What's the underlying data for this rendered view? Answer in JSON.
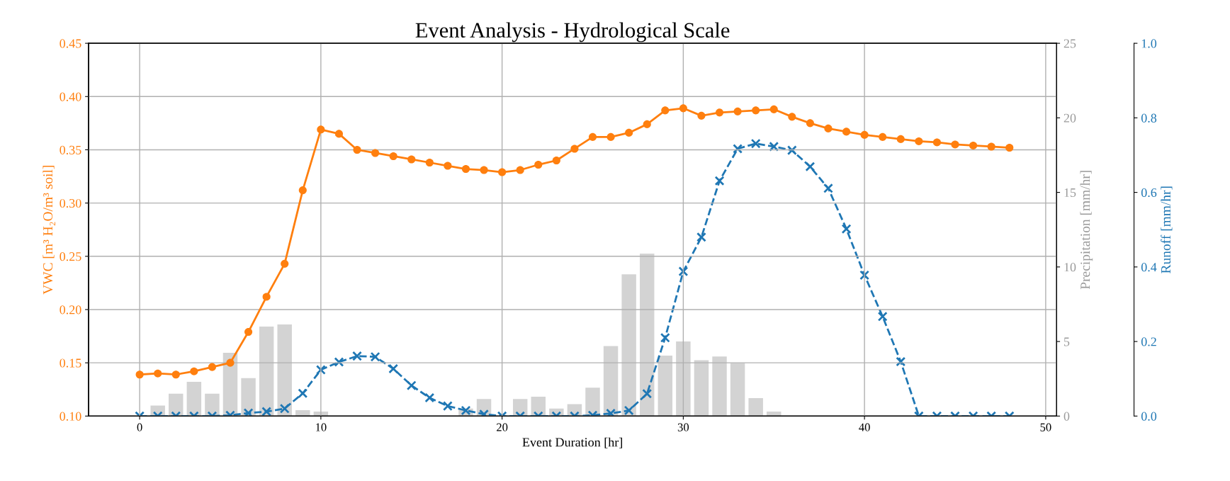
{
  "chart_data": {
    "type": "line",
    "title": "Event Analysis - Hydrological Scale",
    "xlabel": "Event Duration [hr]",
    "ylabel": "VWC [m³ H₂O/m³ soil]",
    "y2label": "Precipitation [mm/hr]",
    "y3label": "Runoff [mm/hr]",
    "xlim": [
      -2.82,
      50.6
    ],
    "xticks": [
      0,
      10,
      20,
      30,
      40,
      50
    ],
    "ylim": [
      0.1,
      0.45
    ],
    "yticks": [
      {
        "value": 0.1,
        "label": "0.10"
      },
      {
        "value": 0.15,
        "label": "0.15"
      },
      {
        "value": 0.2,
        "label": "0.20"
      },
      {
        "value": 0.25,
        "label": "0.25"
      },
      {
        "value": 0.3,
        "label": "0.30"
      },
      {
        "value": 0.35,
        "label": "0.35"
      },
      {
        "value": 0.4,
        "label": "0.40"
      },
      {
        "value": 0.45,
        "label": "0.45"
      }
    ],
    "y2lim": [
      0,
      25
    ],
    "y2ticks": [
      0,
      5,
      10,
      15,
      20,
      25
    ],
    "y3lim": [
      0,
      1
    ],
    "y3ticks": [
      {
        "value": 0,
        "label": "0.0"
      },
      {
        "value": 0.2,
        "label": "0.2"
      },
      {
        "value": 0.4,
        "label": "0.4"
      },
      {
        "value": 0.6,
        "label": "0.6"
      },
      {
        "value": 0.8,
        "label": "0.8"
      },
      {
        "value": 1,
        "label": "1.0"
      }
    ],
    "grid": true,
    "legend": false,
    "series": [
      {
        "type": "bar",
        "axis": "y2",
        "color": "#d3d3d3",
        "x": [
          1,
          2,
          3,
          4,
          5,
          6,
          7,
          8,
          9,
          10,
          11,
          12,
          13,
          14,
          15,
          16,
          17,
          18,
          19,
          20,
          21,
          22,
          23,
          24,
          25,
          26,
          27,
          28,
          29,
          30,
          31,
          32,
          33,
          34,
          35
        ],
        "values": [
          0.7,
          1.5,
          2.3,
          1.5,
          4.25,
          2.55,
          6.0,
          6.15,
          0.4,
          0.3,
          0,
          0,
          0,
          0,
          0,
          0,
          0,
          0.5,
          1.15,
          0,
          1.15,
          1.3,
          0.5,
          0.8,
          1.9,
          4.7,
          9.5,
          10.9,
          4.05,
          5.0,
          3.75,
          4.0,
          3.55,
          1.2,
          0.3
        ]
      },
      {
        "axis": "y3",
        "color": "#1f77b4",
        "marker": "cross",
        "line_style": "dashed",
        "x": [
          0,
          1,
          2,
          3,
          4,
          5,
          6,
          7,
          8,
          9,
          10,
          11,
          12,
          13,
          14,
          15,
          16,
          17,
          18,
          19,
          20,
          21,
          22,
          23,
          24,
          25,
          26,
          27,
          28,
          29,
          30,
          31,
          32,
          33,
          34,
          35,
          36,
          37,
          38,
          39,
          40,
          41,
          42,
          43,
          44,
          45,
          46,
          47,
          48
        ],
        "values": [
          0,
          0,
          0,
          0,
          0,
          0.002,
          0.008,
          0.012,
          0.02,
          0.061,
          0.124,
          0.145,
          0.161,
          0.159,
          0.127,
          0.082,
          0.049,
          0.027,
          0.015,
          0.005,
          0,
          0,
          0,
          0,
          0,
          0.002,
          0.007,
          0.015,
          0.06,
          0.21,
          0.388,
          0.48,
          0.631,
          0.717,
          0.731,
          0.723,
          0.713,
          0.669,
          0.611,
          0.502,
          0.378,
          0.267,
          0.146,
          0,
          0,
          0,
          0,
          0,
          0
        ]
      },
      {
        "axis": "y",
        "color": "#ff7f0e",
        "marker": "circle",
        "line_style": "solid",
        "x": [
          0,
          1,
          2,
          3,
          4,
          5,
          6,
          7,
          8,
          9,
          10,
          11,
          12,
          13,
          14,
          15,
          16,
          17,
          18,
          19,
          20,
          21,
          22,
          23,
          24,
          25,
          26,
          27,
          28,
          29,
          30,
          31,
          32,
          33,
          34,
          35,
          36,
          37,
          38,
          39,
          40,
          41,
          42,
          43,
          44,
          45,
          46,
          47,
          48
        ],
        "values": [
          0.139,
          0.14,
          0.139,
          0.142,
          0.146,
          0.15,
          0.179,
          0.212,
          0.243,
          0.312,
          0.369,
          0.365,
          0.35,
          0.347,
          0.344,
          0.341,
          0.338,
          0.335,
          0.332,
          0.331,
          0.329,
          0.331,
          0.336,
          0.34,
          0.351,
          0.362,
          0.362,
          0.366,
          0.374,
          0.387,
          0.389,
          0.382,
          0.385,
          0.386,
          0.387,
          0.388,
          0.381,
          0.375,
          0.37,
          0.367,
          0.364,
          0.362,
          0.36,
          0.358,
          0.357,
          0.355,
          0.354,
          0.353,
          0.352
        ]
      }
    ]
  }
}
